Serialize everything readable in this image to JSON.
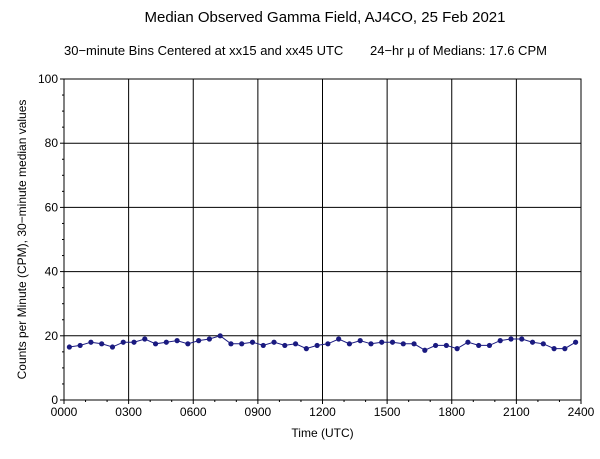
{
  "chart_data": {
    "type": "line",
    "title": "Median Observed Gamma Field, AJ4CO, 25 Feb 2021",
    "subtitle_left": "30−minute Bins Centered at xx15 and xx45 UTC",
    "subtitle_right": "24−hr μ of Medians: 17.6 CPM",
    "xlabel": "Time (UTC)",
    "ylabel": "Counts per Minute (CPM), 30−minute median values",
    "xlim": [
      0,
      24
    ],
    "ylim": [
      0,
      100
    ],
    "x_ticks": [
      0,
      3,
      6,
      9,
      12,
      15,
      18,
      21,
      24
    ],
    "x_tick_labels": [
      "0000",
      "0300",
      "0600",
      "0900",
      "1200",
      "1500",
      "1800",
      "2100",
      "2400"
    ],
    "y_ticks": [
      0,
      20,
      40,
      60,
      80,
      100
    ],
    "y_tick_labels": [
      "0",
      "20",
      "40",
      "60",
      "80",
      "100"
    ],
    "grid": true,
    "series": [
      {
        "color": "#1a1a80",
        "x": [
          0.25,
          0.75,
          1.25,
          1.75,
          2.25,
          2.75,
          3.25,
          3.75,
          4.25,
          4.75,
          5.25,
          5.75,
          6.25,
          6.75,
          7.25,
          7.75,
          8.25,
          8.75,
          9.25,
          9.75,
          10.25,
          10.75,
          11.25,
          11.75,
          12.25,
          12.75,
          13.25,
          13.75,
          14.25,
          14.75,
          15.25,
          15.75,
          16.25,
          16.75,
          17.25,
          17.75,
          18.25,
          18.75,
          19.25,
          19.75,
          20.25,
          20.75,
          21.25,
          21.75,
          22.25,
          22.75,
          23.25,
          23.75
        ],
        "y": [
          16.5,
          17,
          18,
          17.5,
          16.5,
          18,
          18,
          19,
          17.5,
          18,
          18.5,
          17.5,
          18.5,
          19,
          20,
          17.5,
          17.5,
          18,
          17,
          18,
          17,
          17.5,
          16,
          17,
          17.5,
          19,
          17.5,
          18.5,
          17.5,
          18,
          18,
          17.5,
          17.5,
          15.5,
          17,
          17,
          16,
          18,
          17,
          17,
          18.5,
          19,
          19,
          18,
          17.5,
          16,
          16,
          18
        ]
      }
    ]
  }
}
